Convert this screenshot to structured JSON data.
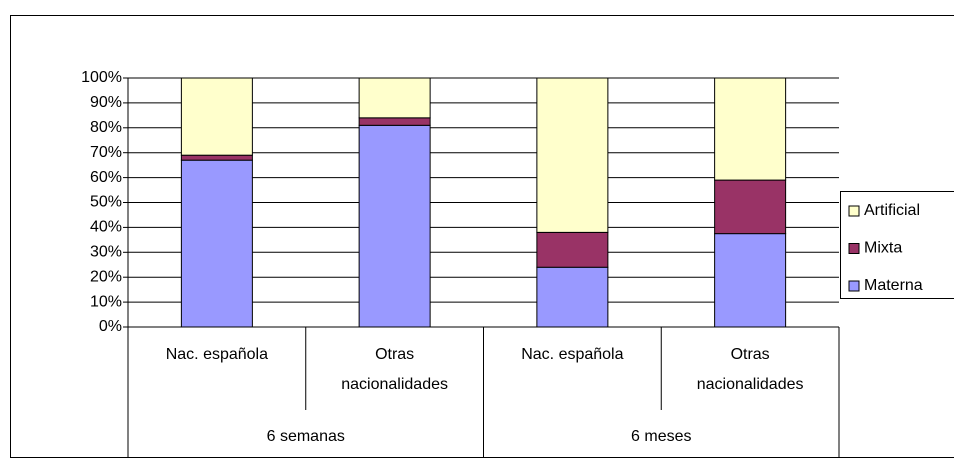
{
  "chart_data": {
    "type": "stacked_bar",
    "category_groups": [
      {
        "name": "6 semanas",
        "categories": [
          "Nac. española",
          "Otras nacionalidades"
        ]
      },
      {
        "name": "6 meses",
        "categories": [
          "Nac. española",
          "Otras nacionalidades"
        ]
      }
    ],
    "series": [
      {
        "name": "Materna",
        "color": "#9999ff",
        "values": [
          67,
          81,
          24,
          37.5
        ]
      },
      {
        "name": "Mixta",
        "color": "#993366",
        "values": [
          2,
          3,
          14,
          21.5
        ]
      },
      {
        "name": "Artificial",
        "color": "#ffffcc",
        "values": [
          31,
          16,
          62,
          41
        ]
      }
    ],
    "ylim": [
      0,
      100
    ],
    "yticks": [
      {
        "value": 0,
        "label": "0%"
      },
      {
        "value": 10,
        "label": "10%"
      },
      {
        "value": 20,
        "label": "20%"
      },
      {
        "value": 30,
        "label": "30%"
      },
      {
        "value": 40,
        "label": "40%"
      },
      {
        "value": 50,
        "label": "50%"
      },
      {
        "value": 60,
        "label": "60%"
      },
      {
        "value": 70,
        "label": "70%"
      },
      {
        "value": 80,
        "label": "80%"
      },
      {
        "value": 90,
        "label": "90%"
      },
      {
        "value": 100,
        "label": "100%"
      }
    ],
    "grid": true,
    "legend": "right"
  }
}
